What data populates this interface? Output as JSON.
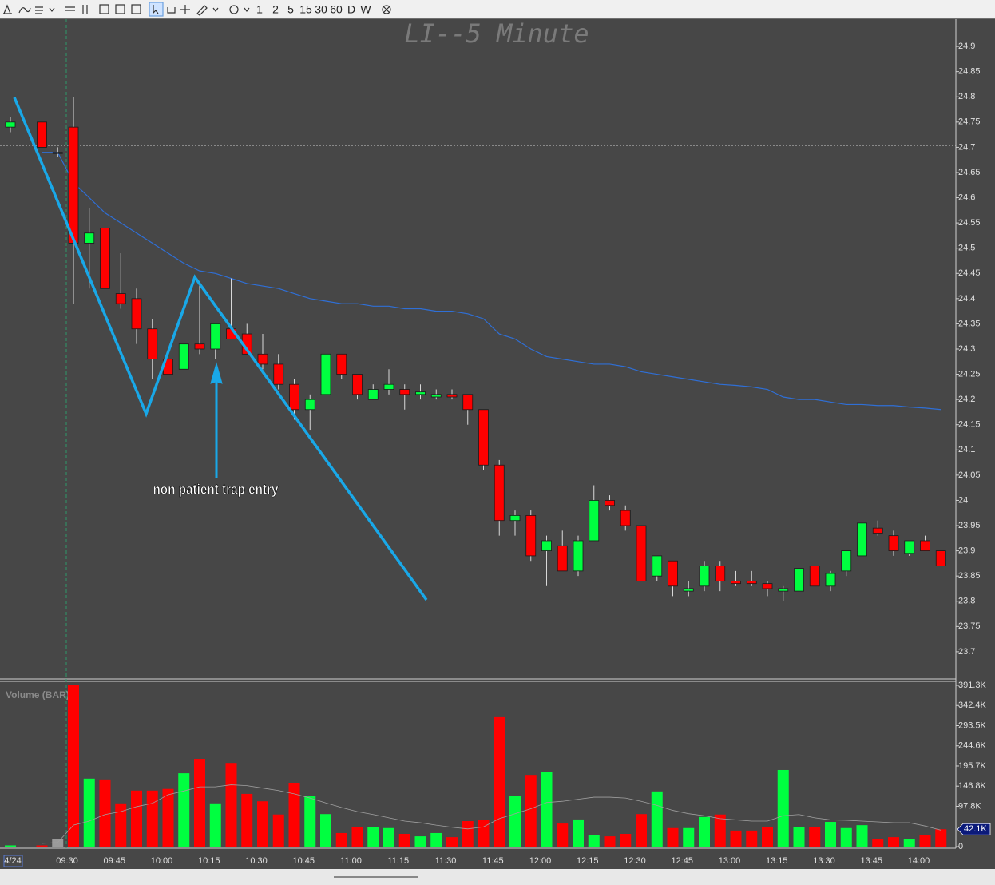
{
  "toolbar": {
    "intervals": [
      "1",
      "2",
      "5",
      "15",
      "30",
      "60",
      "D",
      "W"
    ]
  },
  "chart_data": [
    {
      "type": "candlestick",
      "title": "LI--5 Minute",
      "date_label": "4/24",
      "annotation": "non patient trap entry",
      "categories": [
        null,
        null,
        null,
        null,
        "09:30",
        null,
        null,
        "09:45",
        null,
        null,
        "10:00",
        null,
        null,
        "10:15",
        null,
        null,
        "10:30",
        null,
        null,
        "10:45",
        null,
        null,
        "11:00",
        null,
        null,
        "11:15",
        null,
        null,
        "11:30",
        null,
        null,
        "11:45",
        null,
        null,
        "12:00",
        null,
        null,
        "12:15",
        null,
        null,
        "12:30",
        null,
        null,
        "12:45",
        null,
        null,
        "13:00",
        null,
        null,
        "13:15",
        null,
        null,
        "13:30",
        null,
        null,
        "13:45",
        null,
        null,
        "14:00",
        null
      ],
      "open": [
        24.74,
        null,
        24.75,
        24.69,
        24.74,
        24.51,
        24.54,
        24.41,
        24.4,
        24.34,
        24.28,
        24.26,
        24.31,
        24.3,
        24.34,
        24.33,
        24.29,
        24.27,
        24.23,
        24.18,
        24.21,
        24.29,
        24.25,
        24.2,
        24.22,
        24.22,
        24.21,
        24.205,
        24.21,
        24.21,
        24.18,
        24.07,
        23.96,
        23.97,
        23.9,
        23.91,
        23.86,
        23.92,
        24.0,
        23.98,
        23.95,
        23.85,
        23.88,
        23.82,
        23.83,
        23.87,
        23.84,
        23.84,
        23.835,
        23.82,
        23.82,
        23.87,
        23.83,
        23.86,
        23.89,
        23.945,
        23.93,
        23.895,
        23.92,
        23.9
      ],
      "high": [
        24.76,
        null,
        24.78,
        24.7,
        24.8,
        24.58,
        24.64,
        24.49,
        24.42,
        24.36,
        24.32,
        24.31,
        24.43,
        24.35,
        24.44,
        24.35,
        24.33,
        24.29,
        24.24,
        24.21,
        24.29,
        24.29,
        24.25,
        24.23,
        24.26,
        24.23,
        24.23,
        24.22,
        24.22,
        24.21,
        24.18,
        24.08,
        23.98,
        23.98,
        23.93,
        23.94,
        23.93,
        24.03,
        24.01,
        23.99,
        23.95,
        23.89,
        23.88,
        23.84,
        23.88,
        23.88,
        23.86,
        23.86,
        23.84,
        23.83,
        23.87,
        23.87,
        23.86,
        23.9,
        23.96,
        23.96,
        23.94,
        23.92,
        23.93,
        23.9
      ],
      "low": [
        24.73,
        null,
        24.7,
        24.68,
        24.39,
        24.42,
        24.42,
        24.38,
        24.31,
        24.24,
        24.22,
        24.26,
        24.29,
        24.28,
        24.32,
        24.29,
        24.26,
        24.22,
        24.16,
        24.14,
        24.21,
        24.24,
        24.2,
        24.2,
        24.21,
        24.18,
        24.2,
        24.2,
        24.2,
        24.15,
        24.06,
        23.93,
        23.93,
        23.88,
        23.83,
        23.86,
        23.85,
        23.92,
        23.98,
        23.94,
        23.84,
        23.84,
        23.81,
        23.81,
        23.82,
        23.82,
        23.83,
        23.83,
        23.81,
        23.8,
        23.81,
        23.83,
        23.82,
        23.85,
        23.89,
        23.93,
        23.89,
        23.89,
        23.9,
        23.87
      ],
      "close": [
        24.75,
        null,
        24.7,
        24.69,
        24.51,
        24.53,
        24.42,
        24.39,
        24.34,
        24.28,
        24.25,
        24.31,
        24.3,
        24.35,
        24.32,
        24.29,
        24.27,
        24.23,
        24.18,
        24.2,
        24.29,
        24.25,
        24.21,
        24.22,
        24.23,
        24.21,
        24.215,
        24.21,
        24.205,
        24.18,
        24.07,
        23.96,
        23.97,
        23.89,
        23.92,
        23.86,
        23.92,
        24.0,
        23.99,
        23.95,
        23.84,
        23.89,
        23.83,
        23.825,
        23.87,
        23.84,
        23.835,
        23.835,
        23.825,
        23.825,
        23.865,
        23.83,
        23.855,
        23.9,
        23.955,
        23.935,
        23.9,
        23.92,
        23.9,
        23.87
      ],
      "colors": {
        "up": "#00ff40",
        "down": "#ff0000",
        "flat": "#9a9a9a"
      },
      "series": [
        {
          "color": "#2f6fd6",
          "values": [
            24.69,
            null,
            24.69,
            24.69,
            24.63,
            24.6,
            24.57,
            24.55,
            24.53,
            24.51,
            24.49,
            24.47,
            24.455,
            24.45,
            24.44,
            24.43,
            24.425,
            24.42,
            24.41,
            24.4,
            24.395,
            24.39,
            24.39,
            24.385,
            24.385,
            24.38,
            24.38,
            24.375,
            24.375,
            24.37,
            24.36,
            24.33,
            24.32,
            24.3,
            24.285,
            24.28,
            24.275,
            24.27,
            24.27,
            24.265,
            24.255,
            24.25,
            24.245,
            24.24,
            24.235,
            24.23,
            24.228,
            24.225,
            24.22,
            24.205,
            24.2,
            24.2,
            24.195,
            24.19,
            24.19,
            24.188,
            24.188,
            24.185,
            24.183,
            24.18
          ]
        }
      ],
      "ylim": [
        23.646,
        24.954
      ],
      "yticks": [
        24.9,
        24.85,
        24.8,
        24.75,
        24.7,
        24.65,
        24.6,
        24.55,
        24.5,
        24.45,
        24.4,
        24.35,
        24.3,
        24.25,
        24.2,
        24.15,
        24.1,
        24.05,
        24,
        23.95,
        23.9,
        23.85,
        23.8,
        23.75,
        23.7
      ]
    },
    {
      "type": "bar",
      "title": "Volume (BAR)",
      "values": [
        3000,
        null,
        3000,
        19000,
        391300,
        165000,
        163000,
        105000,
        136000,
        136000,
        140000,
        178000,
        213000,
        105000,
        203000,
        128000,
        110000,
        78000,
        155000,
        122000,
        79000,
        33000,
        47000,
        48000,
        45000,
        31000,
        25000,
        33000,
        23000,
        62000,
        64000,
        314000,
        124000,
        174000,
        182000,
        56000,
        66000,
        29000,
        25000,
        31000,
        79000,
        134000,
        45000,
        45000,
        72000,
        78000,
        39000,
        39000,
        47000,
        186000,
        48000,
        47000,
        60000,
        45000,
        52000,
        19000,
        23000,
        19000,
        29000,
        42100
      ],
      "value_labels": {
        "59": "42.1K"
      },
      "series": [
        {
          "color": "#a0a0a0",
          "values": [
            8000,
            null,
            8000,
            10000,
            52000,
            62000,
            78000,
            85000,
            97000,
            105000,
            126000,
            135000,
            145000,
            145000,
            150000,
            148000,
            142000,
            136000,
            128000,
            118000,
            106000,
            95000,
            85000,
            78000,
            70000,
            62000,
            58000,
            52000,
            47000,
            43000,
            48000,
            68000,
            80000,
            92000,
            107000,
            110000,
            115000,
            120000,
            120000,
            118000,
            110000,
            100000,
            88000,
            80000,
            75000,
            68000,
            65000,
            62000,
            62000,
            75000,
            78000,
            70000,
            65000,
            64000,
            62000,
            60000,
            58000,
            58000,
            50000,
            40000
          ]
        }
      ],
      "ylim": [
        0,
        391300
      ],
      "yticks": [
        {
          "value": 391300,
          "label": "391.3K"
        },
        {
          "value": 342400,
          "label": "342.4K"
        },
        {
          "value": 293500,
          "label": "293.5K"
        },
        {
          "value": 244600,
          "label": "244.6K"
        },
        {
          "value": 195700,
          "label": "195.7K"
        },
        {
          "value": 146800,
          "label": "146.8K"
        },
        {
          "value": 97800,
          "label": "97.8K"
        },
        0
      ]
    }
  ]
}
